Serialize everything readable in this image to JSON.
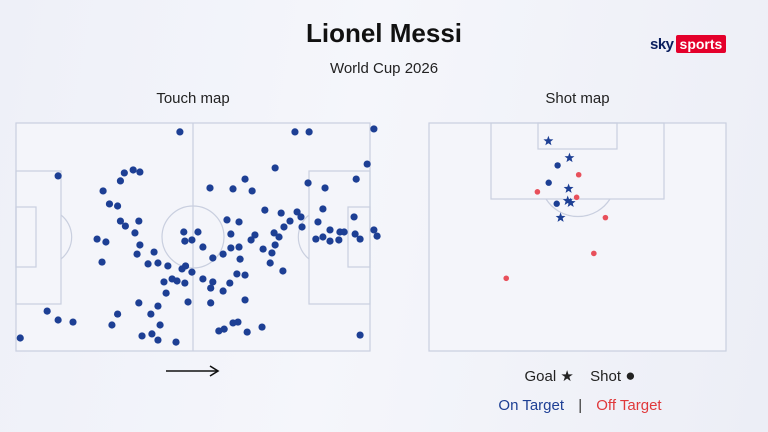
{
  "title": "Lionel Messi",
  "subtitle": "World Cup 2026",
  "logo": {
    "sky": "sky",
    "sports": "sports"
  },
  "panels": {
    "touch": "Touch map",
    "shot": "Shot map"
  },
  "legend": {
    "goal": "Goal",
    "goal_symbol": "★",
    "shot": "Shot",
    "shot_symbol": "●",
    "on_target": "On Target",
    "separator": "|",
    "off_target": "Off Target"
  },
  "colors": {
    "on_target": "#1d3f94",
    "off_target": "#e8505b",
    "touch": "#1d3f94",
    "pitch_line": "#c9cfdf",
    "pitch_bg": "#f4f5fa"
  },
  "chart_data": [
    {
      "type": "scatter",
      "title": "Touch map",
      "xlim": [
        0,
        100
      ],
      "ylim": [
        0,
        100
      ],
      "attack_direction": "right",
      "points": [
        [
          1.2,
          5.7
        ],
        [
          8.8,
          17.5
        ],
        [
          11.9,
          13.6
        ],
        [
          16.1,
          12.7
        ],
        [
          11.9,
          76.8
        ],
        [
          24.6,
          70.2
        ],
        [
          26.4,
          64.5
        ],
        [
          29.5,
          74.6
        ],
        [
          30.6,
          78.1
        ],
        [
          33.1,
          79.4
        ],
        [
          35.0,
          78.5
        ],
        [
          28.7,
          63.6
        ],
        [
          29.5,
          57.0
        ],
        [
          30.9,
          54.8
        ],
        [
          25.4,
          47.8
        ],
        [
          22.9,
          49.1
        ],
        [
          24.3,
          39.0
        ],
        [
          34.7,
          57.0
        ],
        [
          33.6,
          51.8
        ],
        [
          35.0,
          46.5
        ],
        [
          34.2,
          42.5
        ],
        [
          37.3,
          38.2
        ],
        [
          40.1,
          38.6
        ],
        [
          42.9,
          37.3
        ],
        [
          44.1,
          31.6
        ],
        [
          46.9,
          36.0
        ],
        [
          49.7,
          34.6
        ],
        [
          45.5,
          30.7
        ],
        [
          47.7,
          29.8
        ],
        [
          52.8,
          31.6
        ],
        [
          55.6,
          30.3
        ],
        [
          55.0,
          27.6
        ],
        [
          48.6,
          21.5
        ],
        [
          42.4,
          25.4
        ],
        [
          40.1,
          19.7
        ],
        [
          38.1,
          16.2
        ],
        [
          34.7,
          21.1
        ],
        [
          35.6,
          6.6
        ],
        [
          38.4,
          7.5
        ],
        [
          40.7,
          11.4
        ],
        [
          40.1,
          4.8
        ],
        [
          45.2,
          3.9
        ],
        [
          27.1,
          11.4
        ],
        [
          28.7,
          16.2
        ],
        [
          41.8,
          30.3
        ],
        [
          39.0,
          43.4
        ],
        [
          47.7,
          48.2
        ],
        [
          49.7,
          48.7
        ],
        [
          47.4,
          52.2
        ],
        [
          51.4,
          52.2
        ],
        [
          52.8,
          45.6
        ],
        [
          59.6,
          57.5
        ],
        [
          63.0,
          56.6
        ],
        [
          60.7,
          51.3
        ],
        [
          54.8,
          71.5
        ],
        [
          61.3,
          71.1
        ],
        [
          64.7,
          75.4
        ],
        [
          66.7,
          70.2
        ],
        [
          73.2,
          80.3
        ],
        [
          46.3,
          96.1
        ],
        [
          78.8,
          96.1
        ],
        [
          82.8,
          96.1
        ],
        [
          82.5,
          73.7
        ],
        [
          87.3,
          71.5
        ],
        [
          86.7,
          62.3
        ],
        [
          85.3,
          56.6
        ],
        [
          79.4,
          61.0
        ],
        [
          80.5,
          58.8
        ],
        [
          80.8,
          54.4
        ],
        [
          75.7,
          54.4
        ],
        [
          77.4,
          57.0
        ],
        [
          72.9,
          51.8
        ],
        [
          73.2,
          46.5
        ],
        [
          72.3,
          43.0
        ],
        [
          71.8,
          38.6
        ],
        [
          67.5,
          50.9
        ],
        [
          66.4,
          48.7
        ],
        [
          69.8,
          44.7
        ],
        [
          74.3,
          50.0
        ],
        [
          74.9,
          60.5
        ],
        [
          70.3,
          61.8
        ],
        [
          63.0,
          45.6
        ],
        [
          60.7,
          45.2
        ],
        [
          58.5,
          42.5
        ],
        [
          55.6,
          40.8
        ],
        [
          63.3,
          40.3
        ],
        [
          62.4,
          33.8
        ],
        [
          64.7,
          33.3
        ],
        [
          60.4,
          29.8
        ],
        [
          58.5,
          26.3
        ],
        [
          64.7,
          22.4
        ],
        [
          75.4,
          35.1
        ],
        [
          69.5,
          10.5
        ],
        [
          62.7,
          12.7
        ],
        [
          58.8,
          9.6
        ],
        [
          84.7,
          49.1
        ],
        [
          86.7,
          50.0
        ],
        [
          88.7,
          48.2
        ],
        [
          91.5,
          52.2
        ],
        [
          95.8,
          51.3
        ],
        [
          95.5,
          58.8
        ],
        [
          92.7,
          52.2
        ],
        [
          88.7,
          53.1
        ],
        [
          91.2,
          48.7
        ],
        [
          97.2,
          49.1
        ],
        [
          101.1,
          53.1
        ],
        [
          102.0,
          50.4
        ],
        [
          99.2,
          82.0
        ],
        [
          96.1,
          75.4
        ],
        [
          101.1,
          97.4
        ],
        [
          97.2,
          7.0
        ],
        [
          47.9,
          37.3
        ],
        [
          61.3,
          12.3
        ],
        [
          55.0,
          21.1
        ],
        [
          57.3,
          8.8
        ],
        [
          65.3,
          8.3
        ]
      ]
    },
    {
      "type": "scatter",
      "title": "Shot map",
      "xlim": [
        0,
        100
      ],
      "ylim": [
        0,
        100
      ],
      "series": [
        {
          "name": "Goal",
          "target": "On Target",
          "marker": "star",
          "points": [
            [
              40.2,
              92.1
            ],
            [
              47.3,
              84.7
            ],
            [
              47.0,
              71.2
            ],
            [
              46.7,
              65.9
            ],
            [
              47.7,
              65.0
            ],
            [
              44.3,
              58.5
            ]
          ]
        },
        {
          "name": "Shot",
          "target": "On Target",
          "marker": "circle",
          "points": [
            [
              43.3,
              81.4
            ],
            [
              40.3,
              73.8
            ],
            [
              43.0,
              64.6
            ]
          ]
        },
        {
          "name": "Shot",
          "target": "Off Target",
          "marker": "circle",
          "points": [
            [
              50.4,
              77.3
            ],
            [
              36.5,
              69.8
            ],
            [
              49.7,
              67.4
            ],
            [
              59.4,
              58.5
            ],
            [
              55.5,
              42.8
            ],
            [
              26.0,
              31.9
            ]
          ]
        }
      ]
    }
  ]
}
